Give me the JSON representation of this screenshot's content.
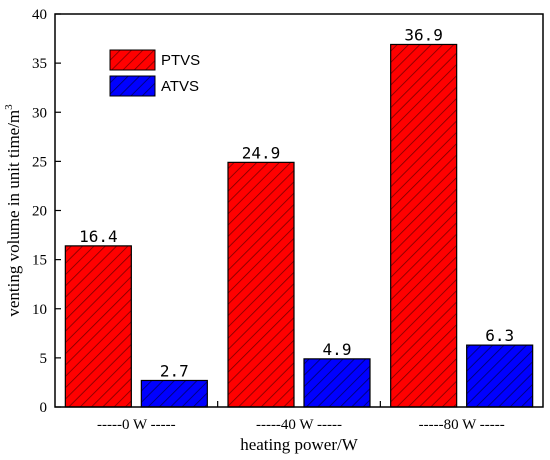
{
  "chart_data": {
    "type": "bar",
    "categories": [
      "-----0 W -----",
      "-----40 W -----",
      "-----80 W -----"
    ],
    "series": [
      {
        "name": "PTVS",
        "values": [
          16.4,
          24.9,
          36.9
        ],
        "color": "#ff0000",
        "hatch_color": "#7a0000"
      },
      {
        "name": "ATVS",
        "values": [
          2.7,
          4.9,
          6.3
        ],
        "color": "#0000ff",
        "hatch_color": "#000066"
      }
    ],
    "data_labels": [
      [
        "16.4",
        "24.9",
        "36.9"
      ],
      [
        "2.7",
        "4.9",
        "6.3"
      ]
    ],
    "xlabel": "heating power/W",
    "ylabel": "venting volume in unit time/m",
    "ylabel_superscript": "3",
    "ylim": [
      0,
      40
    ],
    "yticks": [
      0,
      5,
      10,
      15,
      20,
      25,
      30,
      35,
      40
    ],
    "grid": false,
    "legend_position": "top-left"
  }
}
